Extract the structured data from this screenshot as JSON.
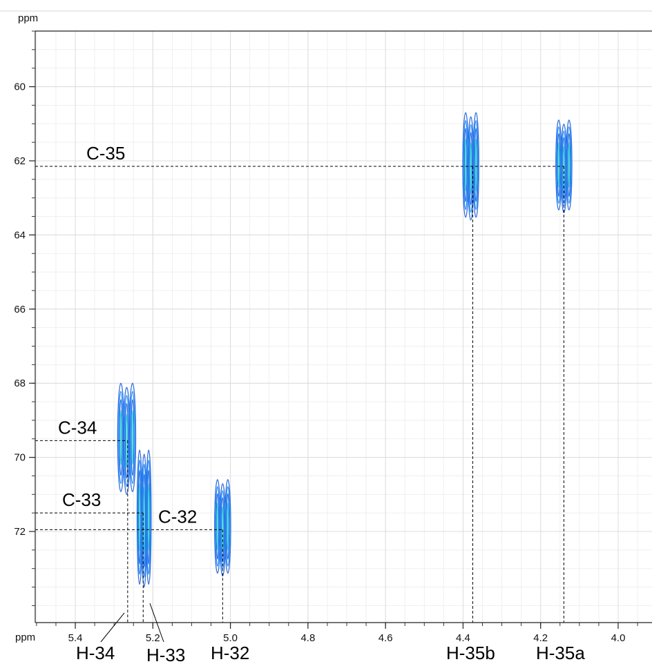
{
  "chart_data": {
    "type": "heatmap",
    "subtype": "2D NMR (HSQC-style) contour plot",
    "x_axis": {
      "unit": "ppm",
      "reversed": true,
      "range": [
        5.51,
        3.9
      ],
      "major_ticks": [
        5.4,
        5.2,
        5.0,
        4.8,
        4.6,
        4.4,
        4.2,
        4.0
      ],
      "major_tick_labels": [
        "5.4",
        "5.2",
        "5.0",
        "4.8",
        "4.6",
        "4.4",
        "4.2",
        "4.0"
      ],
      "minor_step": 0.05
    },
    "y_axis": {
      "unit": "ppm",
      "reversed": true,
      "range": [
        58.5,
        75.0
      ],
      "major_ticks": [
        60,
        62,
        64,
        66,
        68,
        70,
        72
      ],
      "major_tick_labels": [
        "60",
        "62",
        "64",
        "66",
        "68",
        "70",
        "72"
      ],
      "minor_step": 0.5
    },
    "grid": true,
    "peaks": [
      {
        "name": "H-35b / C-35",
        "x": 4.375,
        "y": 62.15,
        "x_span": [
          4.36,
          4.4
        ],
        "y_span": [
          60.7,
          63.6
        ]
      },
      {
        "name": "H-35a / C-35",
        "x": 4.14,
        "y": 62.15,
        "x_span": [
          4.12,
          4.16
        ],
        "y_span": [
          60.9,
          63.4
        ]
      },
      {
        "name": "H-34 / C-34",
        "x": 5.265,
        "y": 69.55,
        "x_span": [
          5.245,
          5.29
        ],
        "y_span": [
          68.0,
          71.0
        ]
      },
      {
        "name": "H-33 / C-33",
        "x": 5.225,
        "y": 71.5,
        "x_span": [
          5.205,
          5.24
        ],
        "y_span": [
          69.8,
          73.5
        ]
      },
      {
        "name": "H-32 / C-32",
        "x": 5.02,
        "y": 71.95,
        "x_span": [
          5.0,
          5.04
        ],
        "y_span": [
          70.6,
          73.2
        ]
      }
    ],
    "annotations": {
      "x_labels": [
        {
          "text": "H-34",
          "x": 5.265
        },
        {
          "text": "H-33",
          "x": 5.225
        },
        {
          "text": "H-32",
          "x": 5.02
        },
        {
          "text": "H-35b",
          "x": 4.375
        },
        {
          "text": "H-35a",
          "x": 4.14
        }
      ],
      "y_labels": [
        {
          "text": "C-35",
          "y": 62.15
        },
        {
          "text": "C-34",
          "y": 69.55
        },
        {
          "text": "C-33",
          "y": 71.5
        },
        {
          "text": "C-32",
          "y": 71.95
        }
      ]
    },
    "colors": {
      "outer_contour": "#2d6bde",
      "mid_contour": "#1e90ff",
      "inner_contour": "#33d6d6",
      "grid": "#e6e6e6",
      "guide": "#000000"
    }
  }
}
